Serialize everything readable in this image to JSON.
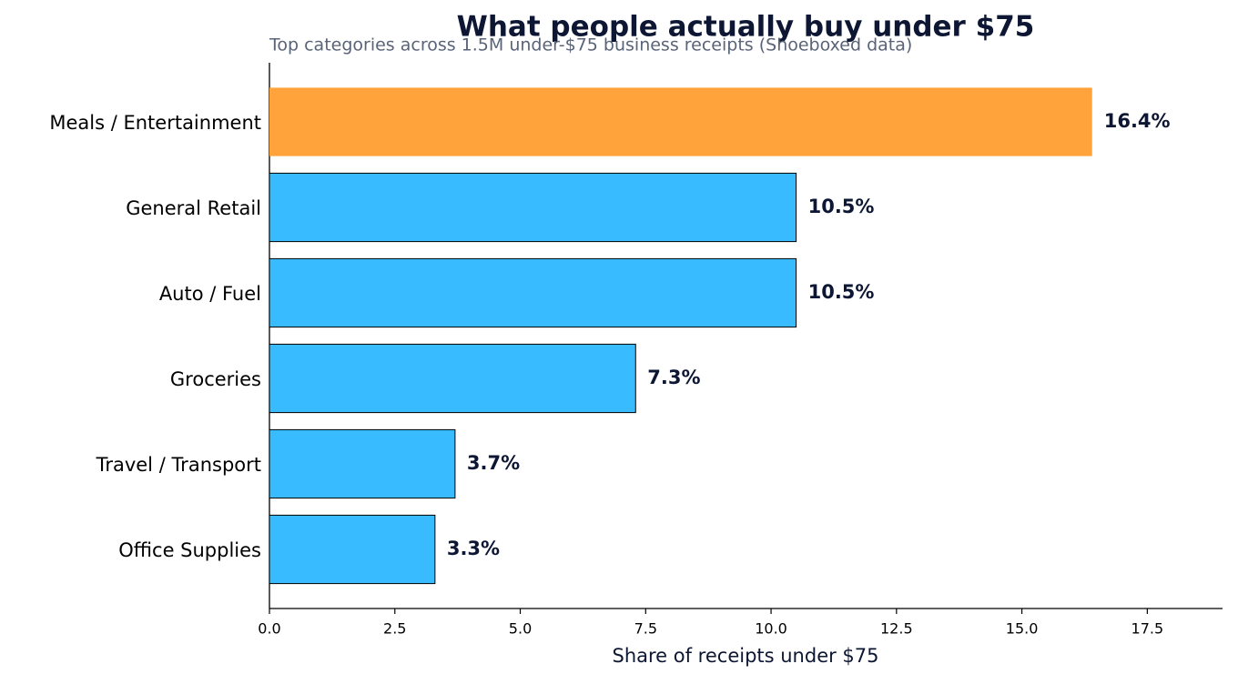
{
  "chart_data": {
    "type": "barh",
    "title": "What people actually buy under $75",
    "subtitle": "Top categories across 1.5M under-$75 business receipts (Shoeboxed data)",
    "x_label": "Share of receipts under $75",
    "categories": [
      "Meals / Entertainment",
      "General Retail",
      "Auto / Fuel",
      "Groceries",
      "Travel / Transport",
      "Office Supplies"
    ],
    "values": [
      16.4,
      10.5,
      10.5,
      7.3,
      3.7,
      3.3
    ],
    "value_labels": [
      "16.4%",
      "10.5%",
      "10.5%",
      "7.3%",
      "3.7%",
      "3.3%"
    ],
    "colors": [
      "#ffa33a",
      "#38bcff",
      "#38bcff",
      "#38bcff",
      "#38bcff",
      "#38bcff"
    ],
    "xlim": [
      0,
      19
    ],
    "xticks": [
      {
        "value": 0,
        "label": "0.0"
      },
      2.5,
      {
        "value": 5,
        "label": "5.0"
      },
      7.5,
      {
        "value": 10,
        "label": "10.0"
      },
      12.5,
      {
        "value": 15,
        "label": "15.0"
      },
      17.5
    ],
    "grid": false
  }
}
